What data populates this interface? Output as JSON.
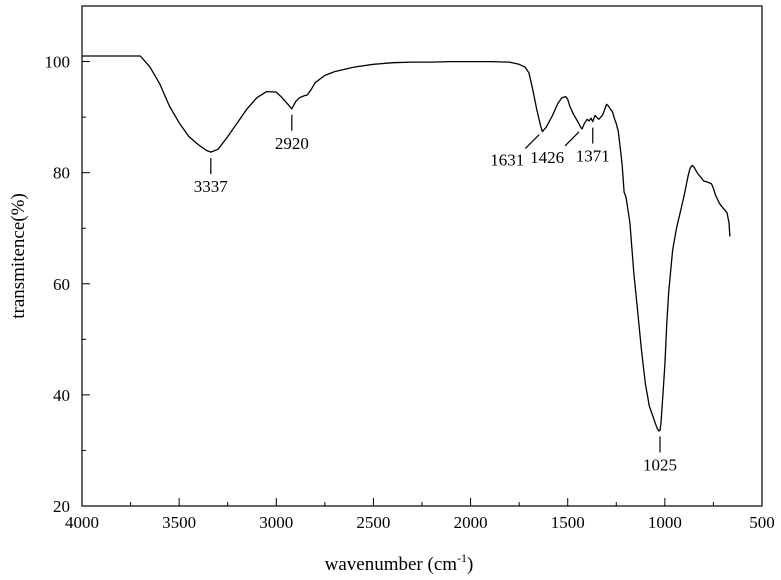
{
  "chart_data": {
    "type": "line",
    "title": "",
    "xlabel_main": "wavenumber (cm",
    "xlabel_sup": "-1",
    "xlabel_close": ")",
    "ylabel": "transmitence(%)",
    "xlim": [
      4000,
      500
    ],
    "ylim": [
      20,
      110
    ],
    "x_ticks": [
      4000,
      3500,
      3000,
      2500,
      2000,
      1500,
      1000,
      500
    ],
    "y_ticks": [
      20,
      40,
      60,
      80,
      100
    ],
    "grid": false,
    "legend": "none",
    "line_color": "#000000",
    "series": [
      {
        "x": [
          4000,
          3700,
          3650,
          3600,
          3550,
          3500,
          3450,
          3400,
          3360,
          3337,
          3300,
          3250,
          3200,
          3150,
          3100,
          3050,
          3000,
          2970,
          2940,
          2920,
          2900,
          2880,
          2860,
          2840,
          2820,
          2800,
          2750,
          2700,
          2600,
          2500,
          2400,
          2300,
          2200,
          2100,
          2000,
          1900,
          1800,
          1750,
          1720,
          1700,
          1680,
          1660,
          1640,
          1631,
          1610,
          1580,
          1550,
          1530,
          1510,
          1500,
          1490,
          1470,
          1450,
          1430,
          1426,
          1415,
          1400,
          1390,
          1380,
          1371,
          1360,
          1340,
          1320,
          1300,
          1290,
          1280,
          1270,
          1260,
          1250,
          1240,
          1230,
          1220,
          1210,
          1200,
          1180,
          1160,
          1140,
          1120,
          1100,
          1080,
          1060,
          1050,
          1040,
          1030,
          1025,
          1020,
          1010,
          1000,
          990,
          980,
          960,
          940,
          920,
          900,
          880,
          870,
          860,
          850,
          840,
          830,
          820,
          800,
          780,
          760,
          750,
          740,
          720,
          700,
          690,
          680,
          670,
          665
        ],
        "y": [
          101,
          101,
          99,
          96,
          92,
          89,
          86.5,
          85,
          84,
          83.7,
          84.2,
          86.5,
          89,
          91.5,
          93.5,
          94.6,
          94.5,
          93.5,
          92.3,
          91.5,
          92.8,
          93.5,
          93.8,
          94,
          95,
          96.2,
          97.5,
          98.2,
          99,
          99.5,
          99.8,
          99.9,
          99.9,
          100,
          100,
          100,
          99.9,
          99.5,
          99,
          98,
          95,
          91.5,
          88.5,
          87.4,
          88.2,
          90.2,
          92.5,
          93.5,
          93.7,
          93.2,
          92,
          90.5,
          89.3,
          88,
          87.9,
          88.8,
          89.6,
          89.3,
          89.8,
          89.2,
          90.3,
          89.6,
          90.4,
          92.3,
          92.0,
          91.4,
          91.0,
          89.8,
          88.8,
          87.5,
          84.5,
          81.5,
          76.5,
          75.6,
          71,
          62,
          55,
          48,
          42,
          38,
          36,
          35,
          34,
          33.5,
          33.6,
          35,
          40,
          45.5,
          53,
          58.5,
          66,
          70,
          73,
          76,
          79.5,
          80.8,
          81.3,
          81.0,
          80.4,
          79.8,
          79.4,
          78.5,
          78.3,
          78.0,
          77.2,
          76.0,
          74.5,
          73.6,
          73.2,
          72.8,
          71.0,
          68.5
        ]
      }
    ],
    "annotations": [
      {
        "label": "3337",
        "x": 3337,
        "y": 83.7,
        "side": "below"
      },
      {
        "label": "2920",
        "x": 2920,
        "y": 91.5,
        "side": "below"
      },
      {
        "label": "1631",
        "x": 1631,
        "y": 87.4,
        "side": "left"
      },
      {
        "label": "1426",
        "x": 1426,
        "y": 87.9,
        "side": "left"
      },
      {
        "label": "1371",
        "x": 1371,
        "y": 89.2,
        "side": "below"
      },
      {
        "label": "1025",
        "x": 1025,
        "y": 33.6,
        "side": "below"
      }
    ]
  }
}
